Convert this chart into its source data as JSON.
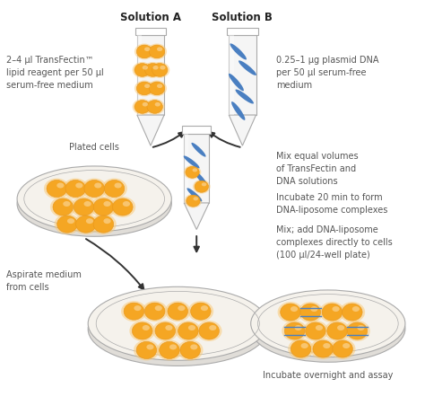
{
  "bg_color": "#ffffff",
  "title_a": "Solution A",
  "title_b": "Solution B",
  "label_a": "2–4 µl TransFectin™\nlipid reagent per 50 µl\nserum-free medium",
  "label_b": "0.25–1 µg plasmid DNA\nper 50 µl serum-free\nmedium",
  "label_mix": "Mix equal volumes\nof TransFectin and\nDNA solutions",
  "label_incubate": "Incubate 20 min to form\nDNA-liposome complexes",
  "label_add": "Mix; add DNA-liposome\ncomplexes directly to cells\n(100 µl/24-well plate)",
  "label_plated": "Plated cells",
  "label_aspirate": "Aspirate medium\nfrom cells",
  "label_overnight": "Incubate overnight and assay",
  "orange": "#F5A623",
  "orange_dark": "#E8961A",
  "orange_light": "#FAC870",
  "blue_dna": "#4A7FC1",
  "tube_outline": "#AAAAAA",
  "dish_outline": "#AAAAAA",
  "arrow_color": "#333333",
  "text_color": "#555555",
  "title_color": "#222222",
  "font_size_title": 8.5,
  "font_size_small": 7.0
}
